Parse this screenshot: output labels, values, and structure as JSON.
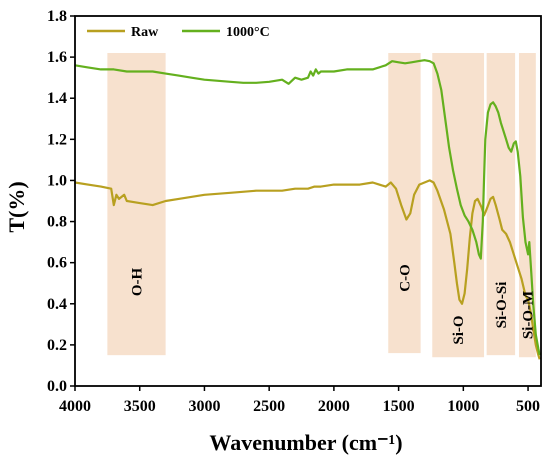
{
  "chart_data": {
    "type": "line",
    "xlabel": "Wavenumber (cm⁻¹)",
    "ylabel": "T(%)",
    "xlim": [
      4000,
      400
    ],
    "ylim": [
      0.0,
      1.8
    ],
    "x_ticks": [
      "4000",
      "3500",
      "3000",
      "2500",
      "2000",
      "1500",
      "1000",
      "500"
    ],
    "y_ticks": [
      "0.0",
      "0.2",
      "0.4",
      "0.6",
      "0.8",
      "1.0",
      "1.2",
      "1.4",
      "1.6",
      "1.8"
    ],
    "legend_position": "top-left",
    "series": [
      {
        "name": "Raw",
        "color": "#b8a020",
        "points": [
          [
            4000,
            0.99
          ],
          [
            3900,
            0.98
          ],
          [
            3800,
            0.97
          ],
          [
            3720,
            0.96
          ],
          [
            3700,
            0.88
          ],
          [
            3680,
            0.93
          ],
          [
            3660,
            0.91
          ],
          [
            3620,
            0.93
          ],
          [
            3600,
            0.9
          ],
          [
            3500,
            0.89
          ],
          [
            3400,
            0.88
          ],
          [
            3300,
            0.9
          ],
          [
            3200,
            0.91
          ],
          [
            3000,
            0.93
          ],
          [
            2800,
            0.94
          ],
          [
            2600,
            0.95
          ],
          [
            2400,
            0.95
          ],
          [
            2300,
            0.96
          ],
          [
            2200,
            0.96
          ],
          [
            2150,
            0.97
          ],
          [
            2100,
            0.97
          ],
          [
            2000,
            0.98
          ],
          [
            1900,
            0.98
          ],
          [
            1800,
            0.98
          ],
          [
            1700,
            0.99
          ],
          [
            1650,
            0.98
          ],
          [
            1600,
            0.97
          ],
          [
            1560,
            0.99
          ],
          [
            1520,
            0.96
          ],
          [
            1480,
            0.88
          ],
          [
            1440,
            0.81
          ],
          [
            1410,
            0.84
          ],
          [
            1380,
            0.93
          ],
          [
            1340,
            0.98
          ],
          [
            1300,
            0.99
          ],
          [
            1260,
            1.0
          ],
          [
            1230,
            0.99
          ],
          [
            1200,
            0.95
          ],
          [
            1150,
            0.86
          ],
          [
            1100,
            0.74
          ],
          [
            1070,
            0.6
          ],
          [
            1050,
            0.5
          ],
          [
            1030,
            0.42
          ],
          [
            1010,
            0.4
          ],
          [
            990,
            0.45
          ],
          [
            970,
            0.57
          ],
          [
            950,
            0.72
          ],
          [
            930,
            0.84
          ],
          [
            910,
            0.9
          ],
          [
            890,
            0.91
          ],
          [
            860,
            0.87
          ],
          [
            840,
            0.83
          ],
          [
            820,
            0.86
          ],
          [
            790,
            0.91
          ],
          [
            770,
            0.92
          ],
          [
            750,
            0.88
          ],
          [
            720,
            0.81
          ],
          [
            700,
            0.76
          ],
          [
            670,
            0.74
          ],
          [
            640,
            0.7
          ],
          [
            610,
            0.64
          ],
          [
            580,
            0.58
          ],
          [
            550,
            0.52
          ],
          [
            520,
            0.44
          ],
          [
            500,
            0.42
          ],
          [
            480,
            0.36
          ],
          [
            460,
            0.28
          ],
          [
            440,
            0.2
          ],
          [
            420,
            0.15
          ],
          [
            410,
            0.13
          ]
        ]
      },
      {
        "name": "1000°C",
        "color": "#64b01e",
        "points": [
          [
            4000,
            1.56
          ],
          [
            3900,
            1.55
          ],
          [
            3800,
            1.54
          ],
          [
            3700,
            1.54
          ],
          [
            3600,
            1.53
          ],
          [
            3500,
            1.53
          ],
          [
            3400,
            1.53
          ],
          [
            3300,
            1.52
          ],
          [
            3200,
            1.51
          ],
          [
            3100,
            1.5
          ],
          [
            3000,
            1.49
          ],
          [
            2800,
            1.48
          ],
          [
            2700,
            1.475
          ],
          [
            2600,
            1.475
          ],
          [
            2500,
            1.48
          ],
          [
            2400,
            1.49
          ],
          [
            2350,
            1.47
          ],
          [
            2300,
            1.5
          ],
          [
            2250,
            1.49
          ],
          [
            2200,
            1.5
          ],
          [
            2180,
            1.53
          ],
          [
            2160,
            1.51
          ],
          [
            2140,
            1.54
          ],
          [
            2120,
            1.52
          ],
          [
            2100,
            1.53
          ],
          [
            2050,
            1.53
          ],
          [
            2000,
            1.53
          ],
          [
            1900,
            1.54
          ],
          [
            1800,
            1.54
          ],
          [
            1700,
            1.54
          ],
          [
            1600,
            1.56
          ],
          [
            1550,
            1.58
          ],
          [
            1500,
            1.575
          ],
          [
            1450,
            1.57
          ],
          [
            1400,
            1.575
          ],
          [
            1350,
            1.58
          ],
          [
            1300,
            1.585
          ],
          [
            1260,
            1.58
          ],
          [
            1230,
            1.57
          ],
          [
            1200,
            1.52
          ],
          [
            1170,
            1.44
          ],
          [
            1140,
            1.3
          ],
          [
            1110,
            1.16
          ],
          [
            1080,
            1.05
          ],
          [
            1050,
            0.96
          ],
          [
            1020,
            0.88
          ],
          [
            990,
            0.83
          ],
          [
            960,
            0.8
          ],
          [
            930,
            0.76
          ],
          [
            900,
            0.7
          ],
          [
            880,
            0.64
          ],
          [
            865,
            0.62
          ],
          [
            850,
            0.8
          ],
          [
            840,
            1.0
          ],
          [
            830,
            1.2
          ],
          [
            810,
            1.33
          ],
          [
            790,
            1.37
          ],
          [
            770,
            1.38
          ],
          [
            750,
            1.36
          ],
          [
            730,
            1.33
          ],
          [
            710,
            1.28
          ],
          [
            690,
            1.24
          ],
          [
            670,
            1.2
          ],
          [
            650,
            1.16
          ],
          [
            630,
            1.14
          ],
          [
            610,
            1.18
          ],
          [
            595,
            1.19
          ],
          [
            580,
            1.14
          ],
          [
            560,
            1.02
          ],
          [
            540,
            0.82
          ],
          [
            520,
            0.7
          ],
          [
            500,
            0.64
          ],
          [
            490,
            0.7
          ],
          [
            475,
            0.55
          ],
          [
            460,
            0.4
          ],
          [
            440,
            0.25
          ],
          [
            420,
            0.18
          ],
          [
            410,
            0.15
          ]
        ]
      }
    ],
    "bands": [
      {
        "label": "O-H",
        "from": 3750,
        "to": 3300,
        "ymin": 0.15,
        "ymax": 1.62
      },
      {
        "label": "C-O",
        "from": 1580,
        "to": 1330,
        "ymin": 0.16,
        "ymax": 1.62
      },
      {
        "label": "Si-O",
        "from": 1240,
        "to": 840,
        "ymin": 0.14,
        "ymax": 1.62
      },
      {
        "label": "Si-O-Si",
        "from": 820,
        "to": 600,
        "ymin": 0.15,
        "ymax": 1.62
      },
      {
        "label": "Si-O-M",
        "from": 570,
        "to": 440,
        "ymin": 0.14,
        "ymax": 1.62
      }
    ],
    "band_color": "#f6dcc6"
  }
}
